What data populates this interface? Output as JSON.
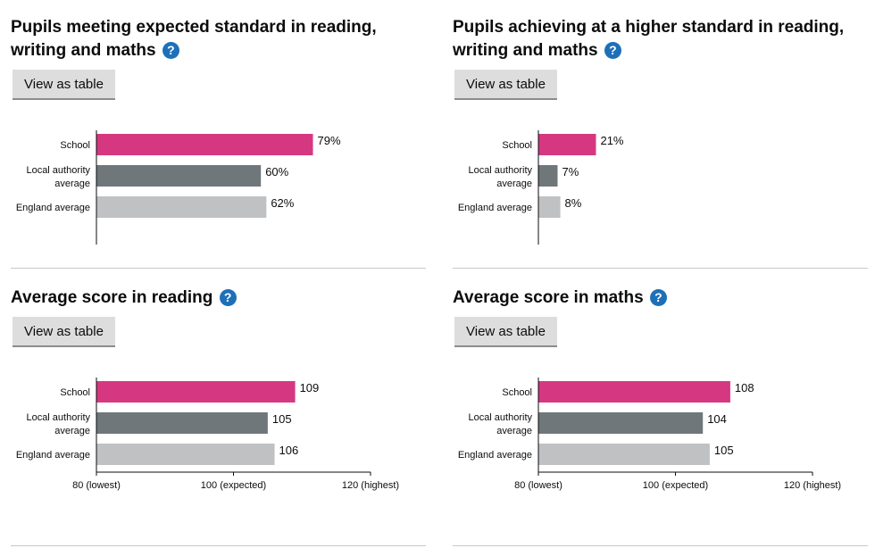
{
  "colors": {
    "school": "#d53880",
    "local": "#6f777b",
    "england": "#bfc1c3",
    "help": "#1d70b8"
  },
  "panels": [
    {
      "title": "Pupils meeting expected standard in reading, writing and maths",
      "help": "?",
      "button": "View as table",
      "chart_data": {
        "type": "bar",
        "orientation": "horizontal",
        "categories": [
          "School",
          "Local authority average",
          "England average"
        ],
        "values": [
          79,
          60,
          62
        ],
        "value_labels": [
          "79%",
          "60%",
          "62%"
        ],
        "xlim": [
          0,
          100
        ]
      }
    },
    {
      "title": "Pupils achieving at a higher standard in reading, writing and maths",
      "help": "?",
      "button": "View as table",
      "chart_data": {
        "type": "bar",
        "orientation": "horizontal",
        "categories": [
          "School",
          "Local authority average",
          "England average"
        ],
        "values": [
          21,
          7,
          8
        ],
        "value_labels": [
          "21%",
          "7%",
          "8%"
        ],
        "xlim": [
          0,
          100
        ]
      }
    },
    {
      "title": "Average score in reading",
      "help": "?",
      "button": "View as table",
      "chart_data": {
        "type": "bar",
        "orientation": "horizontal",
        "categories": [
          "School",
          "Local authority average",
          "England average"
        ],
        "values": [
          109,
          105,
          106
        ],
        "value_labels": [
          "109",
          "105",
          "106"
        ],
        "xlim": [
          80,
          120
        ],
        "xticks": [
          80,
          100,
          120
        ],
        "xtick_labels": [
          "80 (lowest)",
          "100 (expected)",
          "120 (highest)"
        ]
      }
    },
    {
      "title": "Average score in maths",
      "help": "?",
      "button": "View as table",
      "chart_data": {
        "type": "bar",
        "orientation": "horizontal",
        "categories": [
          "School",
          "Local authority average",
          "England average"
        ],
        "values": [
          108,
          104,
          105
        ],
        "value_labels": [
          "108",
          "104",
          "105"
        ],
        "xlim": [
          80,
          120
        ],
        "xticks": [
          80,
          100,
          120
        ],
        "xtick_labels": [
          "80 (lowest)",
          "100 (expected)",
          "120 (highest)"
        ]
      }
    }
  ]
}
